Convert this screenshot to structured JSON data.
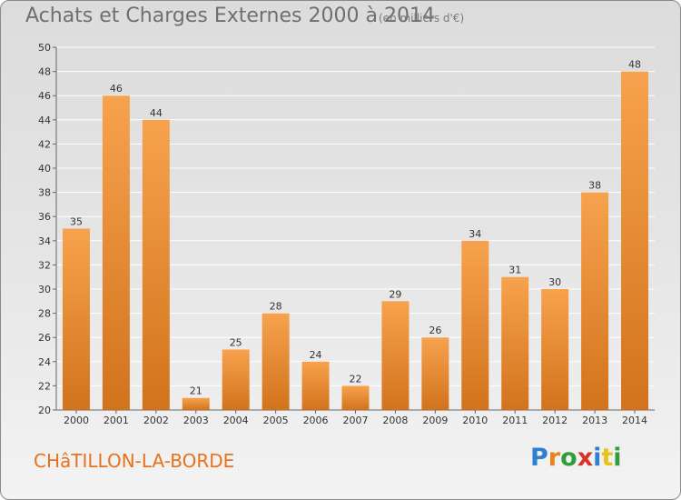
{
  "header": {
    "title": "Achats et Charges Externes 2000 à 2014",
    "subtitle": "(en milliers d'€)"
  },
  "footer": {
    "city": "CHâTILLON-LA-BORDE",
    "logo": [
      "P",
      "r",
      "o",
      "x",
      "i",
      "t",
      "i"
    ],
    "logo_colors": [
      "#2e7fcf",
      "#e9811d",
      "#2f9e3a",
      "#d9302a",
      "#2e7fcf",
      "#e9c11d",
      "#2f9e3a"
    ]
  },
  "colors": {
    "bar_top": "#f7a24e",
    "bar_bottom": "#d2731c",
    "grid": "#ffffff",
    "axis": "#666666"
  },
  "chart_data": {
    "type": "bar",
    "categories": [
      "2000",
      "2001",
      "2002",
      "2003",
      "2004",
      "2005",
      "2006",
      "2007",
      "2008",
      "2009",
      "2010",
      "2011",
      "2012",
      "2013",
      "2014"
    ],
    "values": [
      35,
      46,
      44,
      21,
      25,
      28,
      24,
      22,
      29,
      26,
      34,
      31,
      30,
      38,
      48
    ],
    "ylim": [
      20,
      50
    ],
    "yticks": [
      20,
      22,
      24,
      26,
      28,
      30,
      32,
      34,
      36,
      38,
      40,
      42,
      44,
      46,
      48,
      50
    ],
    "grid": true,
    "data_labels": true
  }
}
